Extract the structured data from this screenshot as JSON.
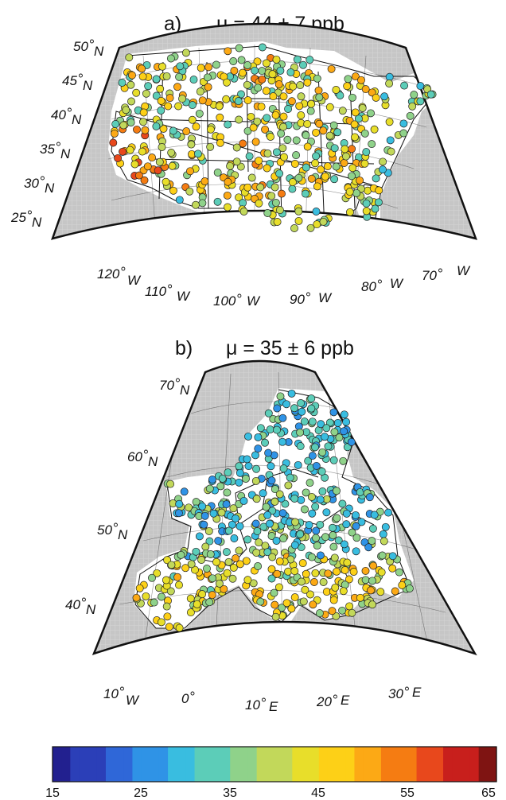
{
  "panel_a": {
    "title_letter": "a)",
    "title_stat": "μ = 44 ± 7 ppb",
    "lat_labels": [
      {
        "deg": "50",
        "hemi": "N"
      },
      {
        "deg": "45",
        "hemi": "N"
      },
      {
        "deg": "40",
        "hemi": "N"
      },
      {
        "deg": "35",
        "hemi": "N"
      },
      {
        "deg": "30",
        "hemi": "N"
      },
      {
        "deg": "25",
        "hemi": "N"
      }
    ],
    "lon_labels": [
      {
        "deg": "120",
        "hemi": "W"
      },
      {
        "deg": "110",
        "hemi": "W"
      },
      {
        "deg": "100",
        "hemi": "W"
      },
      {
        "deg": "90",
        "hemi": "W"
      },
      {
        "deg": "80",
        "hemi": "W"
      },
      {
        "deg": "70",
        "hemi": "W"
      }
    ]
  },
  "panel_b": {
    "title_letter": "b)",
    "title_stat": "μ = 35 ± 6 ppb",
    "lat_labels": [
      {
        "deg": "70",
        "hemi": "N"
      },
      {
        "deg": "60",
        "hemi": "N"
      },
      {
        "deg": "50",
        "hemi": "N"
      },
      {
        "deg": "40",
        "hemi": "N"
      }
    ],
    "lon_labels": [
      {
        "deg": "10",
        "hemi": "W"
      },
      {
        "deg": "0",
        "hemi": ""
      },
      {
        "deg": "10",
        "hemi": "E"
      },
      {
        "deg": "20",
        "hemi": "E"
      },
      {
        "deg": "30",
        "hemi": "E"
      }
    ]
  },
  "colorbar": {
    "ticks": [
      "15",
      "25",
      "35",
      "45",
      "55",
      "65"
    ],
    "min": 15,
    "max": 65,
    "colors": [
      "#22208f",
      "#2b3fb8",
      "#2f67d8",
      "#2f93e6",
      "#39bde0",
      "#5ccdb8",
      "#8fd28a",
      "#c2d85a",
      "#e8de2a",
      "#fdd017",
      "#fca915",
      "#f57c12",
      "#e8481c",
      "#c81f1c",
      "#7f1412"
    ]
  },
  "colors": {
    "land_mask": "#c4c4c4",
    "map_outline": "#111111"
  }
}
